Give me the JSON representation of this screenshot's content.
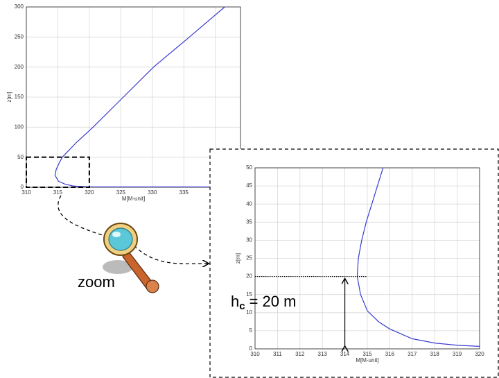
{
  "chart_data": [
    {
      "type": "line",
      "xlabel": "M[M-unit]",
      "ylabel": "z[m]",
      "xlim": [
        310,
        344
      ],
      "ylim": [
        0,
        300
      ],
      "xticks": [
        310,
        315,
        320,
        325,
        330,
        335,
        340
      ],
      "yticks": [
        0,
        50,
        100,
        150,
        200,
        250,
        300
      ],
      "grid": true,
      "series": [
        {
          "color": "#3a3ad0",
          "x": [
            344,
            330,
            320,
            317.5,
            316.2,
            315.1,
            314.55,
            314.75,
            315.2,
            315.7,
            318,
            320.6,
            325.4,
            330.2,
            335.9,
            341.5
          ],
          "values": [
            0.5,
            0.6,
            0.7,
            2,
            5,
            10,
            20,
            30,
            40,
            50,
            75,
            100,
            150,
            200,
            250,
            300
          ]
        }
      ]
    },
    {
      "type": "line",
      "xlabel": "M[M-unit]",
      "ylabel": "z[m]",
      "xlim": [
        310,
        320
      ],
      "ylim": [
        0,
        50
      ],
      "xticks": [
        310,
        311,
        312,
        313,
        314,
        315,
        316,
        317,
        318,
        319,
        320
      ],
      "yticks": [
        0,
        5,
        10,
        15,
        20,
        25,
        30,
        35,
        40,
        45,
        50
      ],
      "grid": true,
      "series": [
        {
          "color": "#3a3ad0",
          "x": [
            320,
            319,
            318,
            317,
            316,
            315.5,
            315,
            314.7,
            314.55,
            314.6,
            314.75,
            314.95,
            315.2,
            315.45,
            315.7
          ],
          "values": [
            0.7,
            1,
            1.6,
            2.8,
            5.5,
            7.5,
            10.5,
            15,
            20,
            25,
            30,
            35,
            40,
            45,
            50
          ]
        }
      ],
      "reference_line": 20,
      "arrow_x": 314,
      "annotation": {
        "h": "h",
        "sub": "c",
        "rest": "= 20 m"
      }
    }
  ],
  "zoom_label": "zoom"
}
